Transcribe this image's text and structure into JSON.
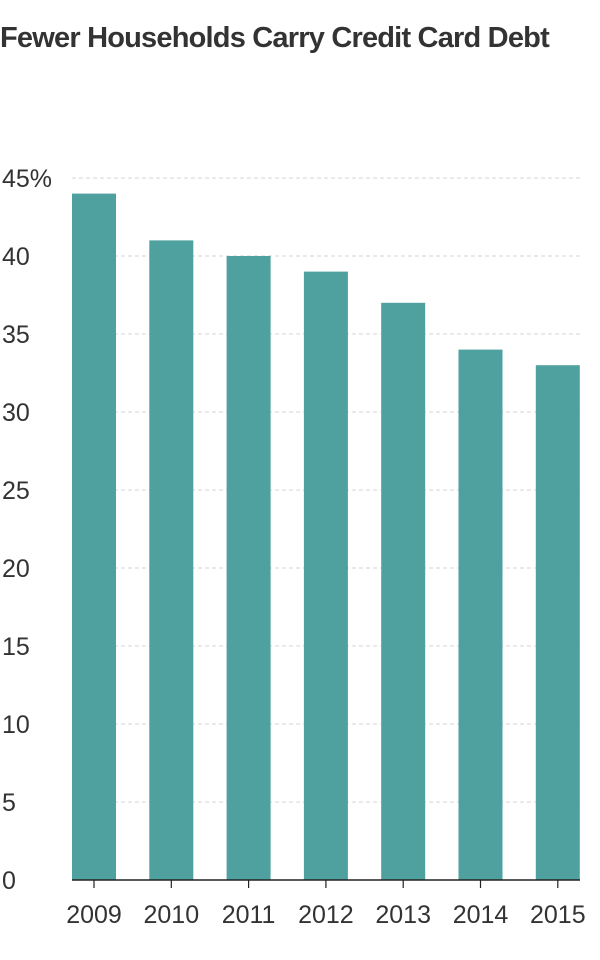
{
  "chart_data": {
    "type": "bar",
    "title": "Fewer Households Carry Credit Card Debt",
    "xlabel": "",
    "ylabel": "",
    "categories": [
      "2009",
      "2010",
      "2011",
      "2012",
      "2013",
      "2014",
      "2015"
    ],
    "values": [
      44,
      41,
      40,
      39,
      37,
      34,
      33
    ],
    "ylim": [
      0,
      45
    ],
    "yticks": [
      0,
      5,
      10,
      15,
      20,
      25,
      30,
      35,
      40,
      45
    ],
    "ytick_labels": [
      "0",
      "5",
      "10",
      "15",
      "20",
      "25",
      "30",
      "35",
      "40",
      "45%"
    ],
    "grid": true,
    "legend": "none",
    "bar_color": "#4ea19f",
    "grid_color": "#d6d6d6",
    "axis_color": "#222222"
  }
}
